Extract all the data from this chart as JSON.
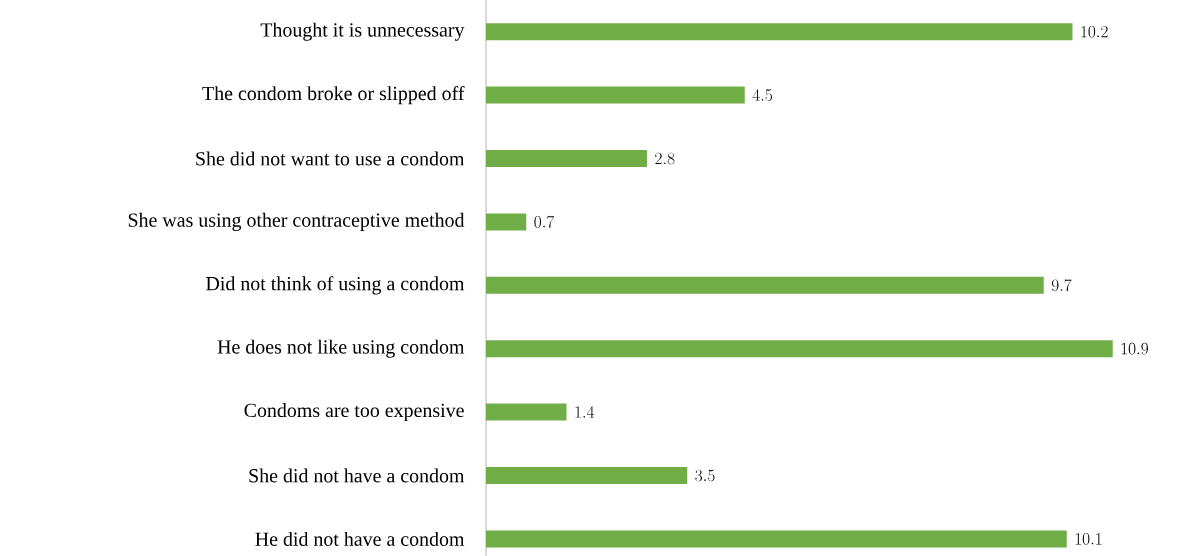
{
  "chart_data": {
    "type": "bar",
    "orientation": "horizontal",
    "categories": [
      "Thought it is unnecessary",
      "The condom broke or slipped off",
      "She did not want to use a condom",
      "She was using other contraceptive method",
      "Did not think of using a condom",
      "He does not like using condom",
      "Condoms are too expensive",
      "She did not have a condom",
      "He did not have a condom"
    ],
    "values": [
      10.2,
      4.5,
      2.8,
      0.7,
      9.7,
      10.9,
      1.4,
      3.5,
      10.1
    ],
    "color": "#70ad47",
    "data_labels": true
  }
}
